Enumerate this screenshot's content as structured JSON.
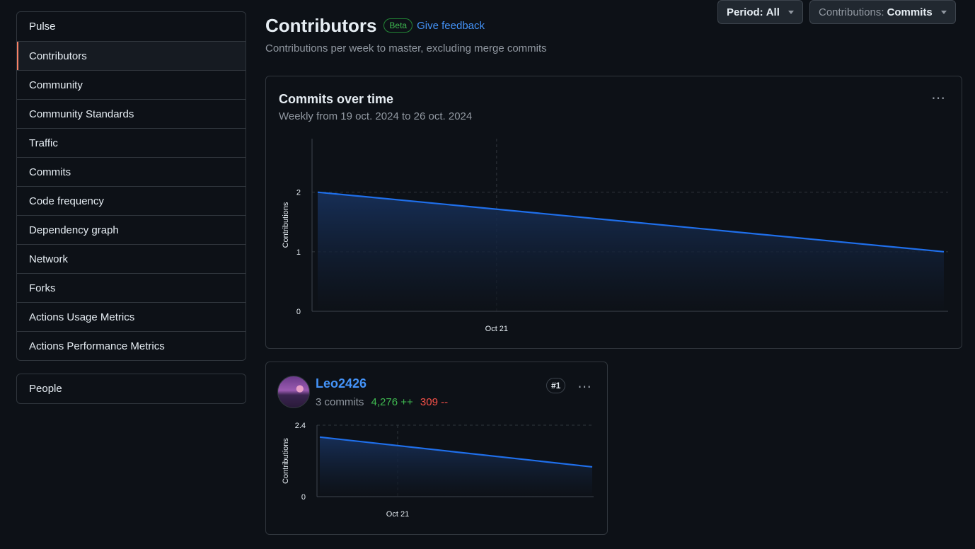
{
  "sidebar": {
    "items": [
      {
        "label": "Pulse"
      },
      {
        "label": "Contributors"
      },
      {
        "label": "Community"
      },
      {
        "label": "Community Standards"
      },
      {
        "label": "Traffic"
      },
      {
        "label": "Commits"
      },
      {
        "label": "Code frequency"
      },
      {
        "label": "Dependency graph"
      },
      {
        "label": "Network"
      },
      {
        "label": "Forks"
      },
      {
        "label": "Actions Usage Metrics"
      },
      {
        "label": "Actions Performance Metrics"
      }
    ],
    "active": "Contributors",
    "people_label": "People"
  },
  "header": {
    "title": "Contributors",
    "badge": "Beta",
    "feedback": "Give feedback",
    "subtitle": "Contributions per week to master, excluding merge commits",
    "period_label": "Period:",
    "period_value": "All",
    "contrib_label": "Contributions:",
    "contrib_value": "Commits"
  },
  "main_chart": {
    "title": "Commits over time",
    "subtitle": "Weekly from 19 oct. 2024 to 26 oct. 2024",
    "ylabel": "Contributions",
    "yticks": [
      "0",
      "1",
      "2"
    ],
    "xtick": "Oct 21"
  },
  "contributor": {
    "name": "Leo2426",
    "commits": "3 commits",
    "additions": "4,276 ++",
    "deletions": "309 --",
    "rank": "#1",
    "ylabel": "Contributions",
    "yticks": [
      "0",
      "2.4"
    ],
    "xtick": "Oct 21"
  },
  "chart_data": [
    {
      "type": "area",
      "title": "Commits over time",
      "ylabel": "Contributions",
      "x": [
        "2024-10-19",
        "2024-10-26"
      ],
      "series": [
        {
          "values": [
            2,
            1
          ]
        }
      ],
      "ylim": [
        0,
        2.4
      ],
      "xticks": [
        "Oct 21"
      ],
      "grid": true,
      "color": "#1f6feb"
    },
    {
      "type": "area",
      "title": "Leo2426",
      "ylabel": "Contributions",
      "x": [
        "2024-10-19",
        "2024-10-26"
      ],
      "series": [
        {
          "values": [
            2,
            1
          ]
        }
      ],
      "ylim": [
        0,
        2.4
      ],
      "xticks": [
        "Oct 21"
      ],
      "grid": true,
      "color": "#1f6feb"
    }
  ],
  "colors": {
    "background": "#0d1117",
    "accent": "#1f6feb",
    "link": "#4493f8",
    "additions": "#3fb950",
    "deletions": "#f85149",
    "active_marker": "#f78166"
  }
}
